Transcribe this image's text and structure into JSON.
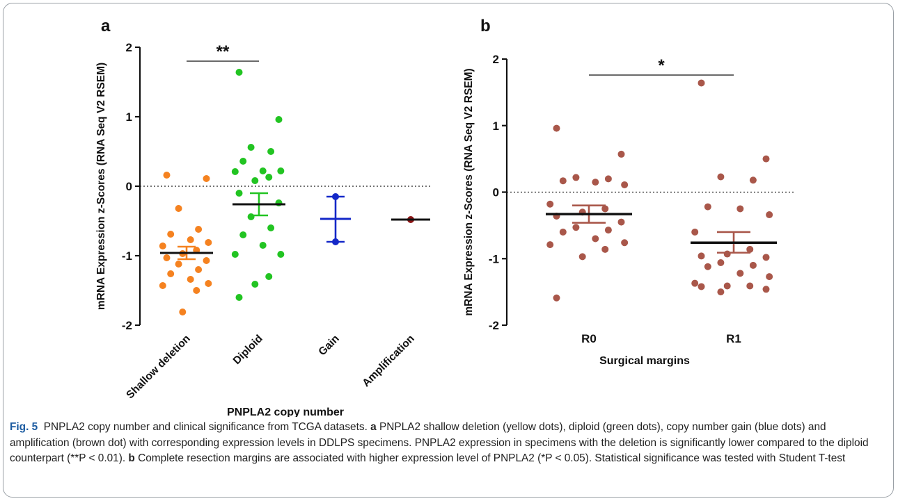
{
  "chart_data": [
    {
      "type": "scatter",
      "panel_label": "a",
      "xlabel": "PNPLA2 copy number",
      "ylabel": "mRNA Expression z-Scores (RNA Seq V2 RSEM)",
      "ylim": [
        -2,
        2
      ],
      "yticks": [
        "2",
        "1",
        "0",
        "-1",
        "-2"
      ],
      "reference_line": 0,
      "categories": [
        "Shallow deletion",
        "Diploid",
        "Gain",
        "Amplification"
      ],
      "series": [
        {
          "category": "Shallow deletion",
          "color": "#f58220",
          "mean": -0.96,
          "sem_low": -1.05,
          "sem_high": -0.87,
          "values": [
            0.16,
            0.11,
            -0.32,
            -0.62,
            -0.69,
            -0.77,
            -0.81,
            -0.86,
            -0.92,
            -0.97,
            -1.03,
            -1.07,
            -1.12,
            -1.2,
            -1.26,
            -1.34,
            -1.4,
            -1.43,
            -1.5,
            -1.81
          ]
        },
        {
          "category": "Diploid",
          "color": "#22c422",
          "mean": -0.26,
          "sem_low": -0.42,
          "sem_high": -0.1,
          "values": [
            1.64,
            0.96,
            0.56,
            0.5,
            0.36,
            0.22,
            0.22,
            0.21,
            0.13,
            0.08,
            -0.1,
            -0.24,
            -0.44,
            -0.6,
            -0.7,
            -0.85,
            -0.98,
            -0.98,
            -1.3,
            -1.41,
            -1.6
          ]
        },
        {
          "category": "Gain",
          "color": "#1428c8",
          "mean": -0.47,
          "sem_low": -0.8,
          "sem_high": -0.15,
          "values": [
            -0.15,
            -0.8
          ]
        },
        {
          "category": "Amplification",
          "color": "#8c1414",
          "mean": -0.48,
          "sem_low": -0.48,
          "sem_high": -0.48,
          "values": [
            -0.48
          ]
        }
      ],
      "annotation": {
        "text": "**",
        "from": "Shallow deletion",
        "to": "Diploid",
        "y": 1.8
      }
    },
    {
      "type": "scatter",
      "panel_label": "b",
      "xlabel": "Surgical margins",
      "ylabel": "mRNA Expression z-Scores (RNA Seq V2 RSEM)",
      "ylim": [
        -2,
        2
      ],
      "yticks": [
        "2",
        "1",
        "0",
        "-1",
        "-2"
      ],
      "reference_line": 0,
      "categories": [
        "R0",
        "R1"
      ],
      "series": [
        {
          "category": "R0",
          "color": "#a9574a",
          "mean": -0.33,
          "sem_low": -0.46,
          "sem_high": -0.2,
          "values": [
            0.96,
            0.57,
            0.22,
            0.2,
            0.17,
            0.15,
            0.11,
            -0.18,
            -0.25,
            -0.3,
            -0.36,
            -0.45,
            -0.53,
            -0.57,
            -0.6,
            -0.7,
            -0.76,
            -0.79,
            -0.86,
            -0.97,
            -1.59
          ]
        },
        {
          "category": "R1",
          "color": "#a9574a",
          "mean": -0.76,
          "sem_low": -0.91,
          "sem_high": -0.6,
          "values": [
            1.64,
            0.5,
            0.23,
            0.18,
            -0.22,
            -0.25,
            -0.34,
            -0.6,
            -0.86,
            -0.93,
            -0.96,
            -0.98,
            -1.06,
            -1.1,
            -1.12,
            -1.22,
            -1.27,
            -1.37,
            -1.41,
            -1.41,
            -1.42,
            -1.46,
            -1.5
          ]
        }
      ],
      "annotation": {
        "text": "*",
        "from": "R0",
        "to": "R1",
        "y": 1.76
      }
    }
  ],
  "caption": {
    "label": "Fig. 5",
    "line1": "PNPLA2 copy number and clinical significance from TCGA datasets.",
    "a_label": "a",
    "a_text": "PNPLA2 shallow deletion (yellow dots), diploid (green dots), copy number gain (blue dots) and amplification (brown dot) with corresponding expression levels in DDLPS specimens. PNPLA2 expression in specimens with the deletion is significantly lower compared to the diploid counterpart (**P < 0.01).",
    "b_label": "b",
    "b_text": "Complete resection margins are associated with higher expression level of PNPLA2 (*P < 0.05). Statistical significance was tested with Student T-test"
  }
}
